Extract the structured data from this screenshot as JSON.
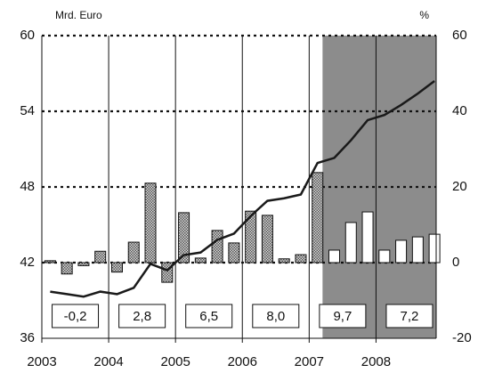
{
  "chart_data": {
    "type": "bar-line",
    "y_label": "Mrd. Euro",
    "y2_label": "%",
    "x": [
      2003.125,
      2003.375,
      2003.625,
      2003.875,
      2004.125,
      2004.375,
      2004.625,
      2004.875,
      2005.125,
      2005.375,
      2005.625,
      2005.875,
      2006.125,
      2006.375,
      2006.625,
      2006.875,
      2007.125,
      2007.375,
      2007.625,
      2007.875,
      2008.125,
      2008.375,
      2008.625,
      2008.875
    ],
    "xlim": [
      2003,
      2008.9
    ],
    "xticks": [
      2003,
      2004,
      2005,
      2006,
      2007,
      2008
    ],
    "ylim": [
      36,
      60
    ],
    "yticks": [
      36,
      42,
      48,
      54,
      60
    ],
    "y2lim": [
      -20,
      60
    ],
    "y2ticks": [
      -20,
      0,
      20,
      40,
      60
    ],
    "shade": [
      2007.2,
      2008.9
    ],
    "shade_color": "#8c8c8c",
    "grid": true,
    "series": [
      {
        "type": "bar",
        "axis": "y2",
        "values": [
          0.5,
          -3,
          -0.8,
          3,
          -2.5,
          5.4,
          21,
          -5.2,
          13.2,
          1.2,
          8.5,
          5.2,
          13.6,
          12.5,
          1,
          2.1,
          23.8,
          3.3,
          10.6,
          13.4,
          3.3,
          5.9,
          6.8,
          7.5
        ],
        "colors": [
          "hatch",
          "hatch",
          "hatch",
          "hatch",
          "hatch",
          "hatch",
          "hatch",
          "hatch",
          "hatch",
          "hatch",
          "hatch",
          "hatch",
          "hatch",
          "hatch",
          "hatch",
          "hatch",
          "hatch",
          "#ffffff",
          "#ffffff",
          "#ffffff",
          "#ffffff",
          "#ffffff",
          "#ffffff",
          "#ffffff"
        ]
      },
      {
        "type": "line",
        "color": "#1a1a1a",
        "values": [
          39.7,
          39.5,
          39.3,
          39.7,
          39.5,
          40.0,
          41.9,
          41.4,
          42.6,
          42.8,
          43.8,
          44.3,
          45.7,
          46.9,
          47.1,
          47.4,
          49.9,
          50.3,
          51.7,
          53.3,
          53.7,
          54.5,
          55.4,
          56.4
        ]
      }
    ],
    "annotations": [
      "-0,2",
      "2,8",
      "6,5",
      "8,0",
      "9,7",
      "7,2"
    ]
  }
}
